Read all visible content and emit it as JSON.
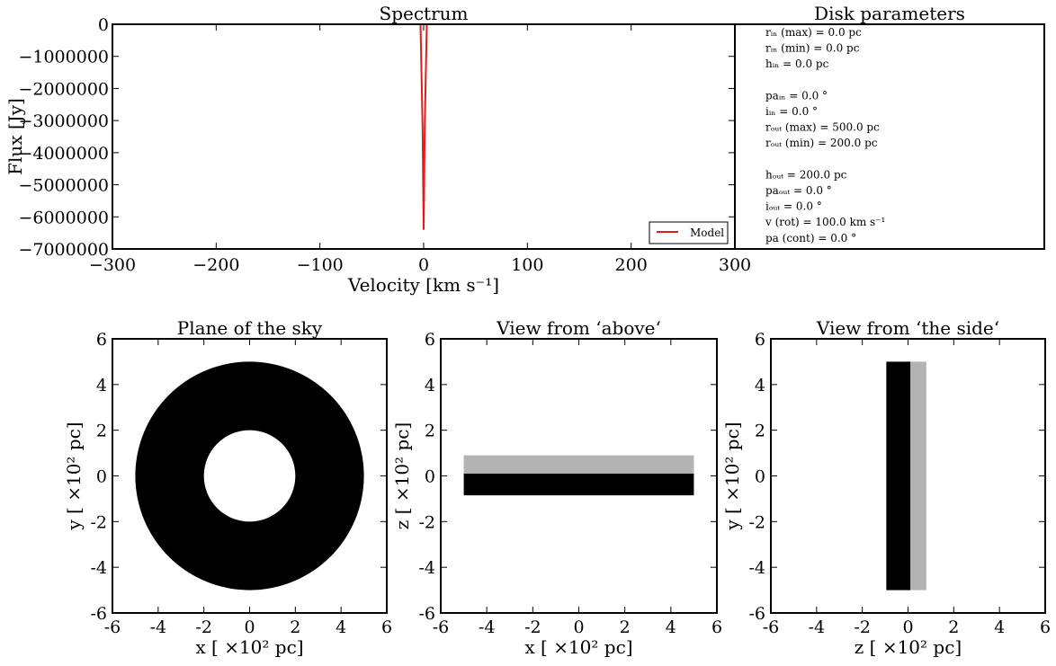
{
  "chart_data": [
    {
      "type": "line",
      "title": "Spectrum",
      "xlabel": "Velocity [km s⁻¹]",
      "ylabel": "Flux [Jy]",
      "xlim": [
        -300,
        300
      ],
      "ylim": [
        -7000000,
        0
      ],
      "xticks": [
        -300,
        -200,
        -100,
        0,
        100,
        200,
        300
      ],
      "yticks": [
        0,
        -1000000,
        -2000000,
        -3000000,
        -4000000,
        -5000000,
        -6000000,
        -7000000
      ],
      "legend_position": "lower-right",
      "series": [
        {
          "name": "Model",
          "color": "#e41a1c",
          "x": [
            -300,
            -3,
            -1,
            0,
            1,
            3,
            300
          ],
          "y": [
            0,
            0,
            -3200000,
            -6400000,
            -3200000,
            0,
            0
          ]
        }
      ]
    },
    {
      "type": "image",
      "title": "Plane of the sky",
      "xlabel": "x [ ×10² pc]",
      "ylabel": "y [ ×10² pc]",
      "xlim": [
        -6,
        6
      ],
      "ylim": [
        -6,
        6
      ],
      "ticks": [
        -6,
        -4,
        -2,
        0,
        2,
        4,
        6
      ],
      "shapes": [
        {
          "kind": "annulus",
          "cx": 0,
          "cy": 0,
          "r_outer": 5.0,
          "r_inner": 2.0,
          "color": "#000000"
        }
      ]
    },
    {
      "type": "image",
      "title": "View from ‘above‘",
      "xlabel": "x [ ×10² pc]",
      "ylabel": "z [ ×10² pc]",
      "xlim": [
        -6,
        6
      ],
      "ylim": [
        -6,
        6
      ],
      "ticks": [
        -6,
        -4,
        -2,
        0,
        2,
        4,
        6
      ],
      "shapes": [
        {
          "kind": "rect",
          "x0": -5,
          "x1": 5,
          "y0": 0,
          "y1": 0.9,
          "color": "#b3b3b3"
        },
        {
          "kind": "rect",
          "x0": -5,
          "x1": 5,
          "y0": -0.85,
          "y1": 0.1,
          "color": "#000000"
        }
      ]
    },
    {
      "type": "image",
      "title": "View from ‘the side‘",
      "xlabel": "z [ ×10² pc]",
      "ylabel": "y [ ×10² pc]",
      "xlim": [
        -6,
        6
      ],
      "ylim": [
        -6,
        6
      ],
      "ticks": [
        -6,
        -4,
        -2,
        0,
        2,
        4,
        6
      ],
      "shapes": [
        {
          "kind": "rect",
          "x0": 0,
          "x1": 0.8,
          "y0": -5,
          "y1": 5,
          "color": "#b3b3b3"
        },
        {
          "kind": "rect",
          "x0": -0.95,
          "x1": 0.1,
          "y0": -5,
          "y1": 5,
          "color": "#000000"
        }
      ]
    }
  ],
  "params": {
    "title": "Disk parameters",
    "lines": [
      "rᵢₙ (max) = 0.0 pc",
      "rᵢₙ (min) = 0.0 pc",
      "hᵢₙ = 0.0 pc",
      "",
      "paᵢₙ = 0.0 °",
      "iᵢₙ = 0.0 °",
      "rₒᵤₜ (max) = 500.0 pc",
      "rₒᵤₜ (min) = 200.0 pc",
      "",
      "hₒᵤₜ = 200.0 pc",
      "paₒᵤₜ = 0.0 °",
      "iₒᵤₜ = 0.0 °",
      "v (rot) = 100.0 km s⁻¹",
      "pa (cont) = 0.0 °"
    ]
  }
}
